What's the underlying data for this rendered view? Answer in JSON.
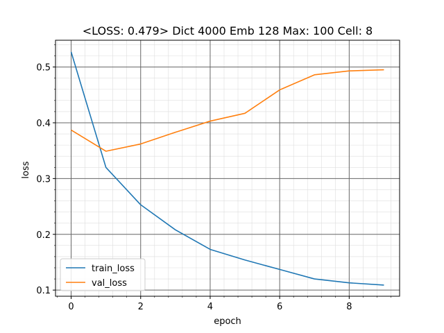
{
  "chart_data": {
    "type": "line",
    "title": "<LOSS: 0.479> Dict 4000 Emb 128 Max: 100 Cell: 8",
    "xlabel": "epoch",
    "ylabel": "loss",
    "xlim": [
      -0.45,
      9.45
    ],
    "ylim": [
      0.089,
      0.548
    ],
    "xticks": [
      0,
      2,
      4,
      6,
      8
    ],
    "yticks": [
      0.1,
      0.2,
      0.3,
      0.4,
      0.5
    ],
    "xtick_labels": [
      "0",
      "2",
      "4",
      "6",
      "8"
    ],
    "ytick_labels": [
      "0.1",
      "0.2",
      "0.3",
      "0.4",
      "0.5"
    ],
    "grid": true,
    "minor_grid": true,
    "legend_position": "lower-left",
    "x": [
      0,
      1,
      2,
      3,
      4,
      5,
      6,
      7,
      8,
      9
    ],
    "series": [
      {
        "name": "train_loss",
        "color": "#1f77b4",
        "values": [
          0.527,
          0.32,
          0.253,
          0.208,
          0.173,
          0.154,
          0.137,
          0.12,
          0.113,
          0.109
        ]
      },
      {
        "name": "val_loss",
        "color": "#ff7f0e",
        "values": [
          0.387,
          0.349,
          0.362,
          0.383,
          0.403,
          0.417,
          0.459,
          0.486,
          0.493,
          0.495
        ]
      }
    ]
  }
}
